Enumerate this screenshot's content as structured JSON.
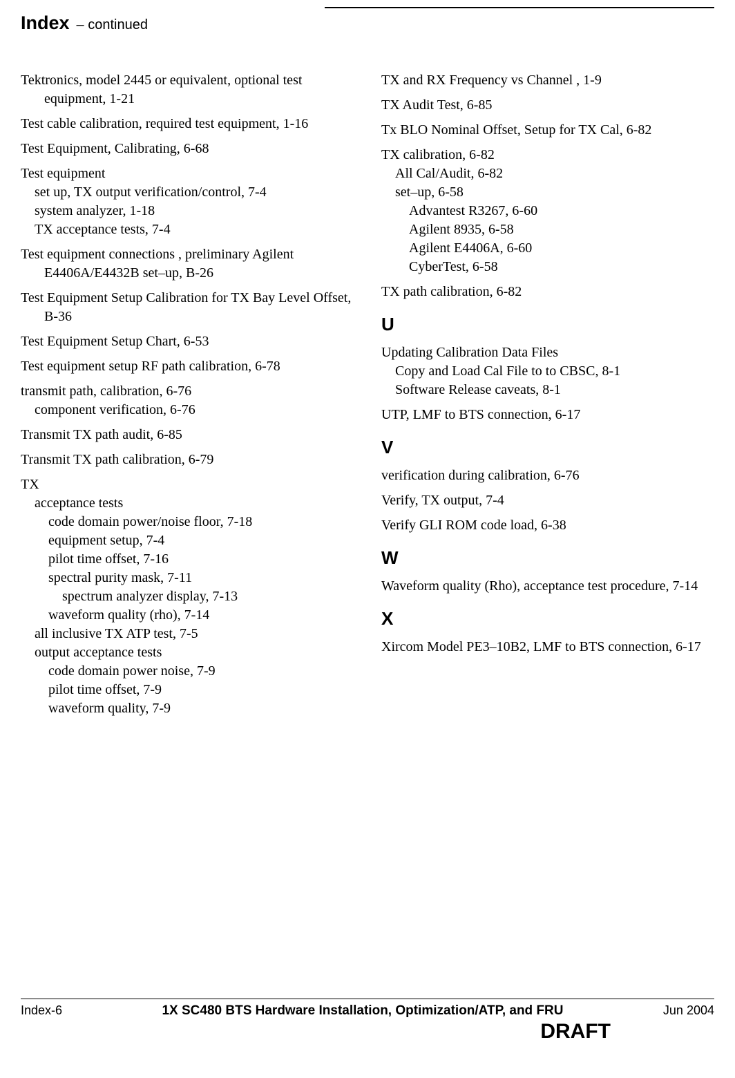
{
  "header": {
    "title": "Index",
    "subtitle": "– continued"
  },
  "left": {
    "e1": "Tektronics, model 2445 or equivalent, optional test equipment, 1-21",
    "e2": "Test cable calibration, required test equipment, 1-16",
    "e3": "Test Equipment, Calibrating, 6-68",
    "e4": "Test equipment",
    "e4a": "set up, TX output verification/control, 7-4",
    "e4b": "system analyzer, 1-18",
    "e4c": "TX acceptance tests, 7-4",
    "e5": "Test equipment connections , preliminary Agilent E4406A/E4432B set–up, B-26",
    "e6": "Test Equipment Setup Calibration for TX Bay Level Offset, B-36",
    "e7": "Test Equipment Setup Chart, 6-53",
    "e8": "Test equipment setup RF path  calibration, 6-78",
    "e9": "transmit path, calibration, 6-76",
    "e9a": "component verification, 6-76",
    "e10": "Transmit TX path audit, 6-85",
    "e11": "Transmit TX path calibration, 6-79",
    "e12": "TX",
    "e12a": "acceptance tests",
    "e12a1": "code domain power/noise floor, 7-18",
    "e12a2": "equipment setup, 7-4",
    "e12a3": "pilot time offset, 7-16",
    "e12a4": "spectral purity mask, 7-11",
    "e12a4a": "spectrum analyzer display, 7-13",
    "e12a5": "waveform quality (rho), 7-14",
    "e12b": "all inclusive TX ATP test, 7-5",
    "e12c": "output acceptance tests",
    "e12c1": "code domain power noise, 7-9",
    "e12c2": "pilot time offset, 7-9",
    "e12c3": "waveform quality, 7-9"
  },
  "right": {
    "r1": "TX and RX Frequency vs Channel , 1-9",
    "r2": "TX Audit Test, 6-85",
    "r3": "Tx BLO Nominal Offset, Setup for TX Cal, 6-82",
    "r4": "TX calibration, 6-82",
    "r4a": "All Cal/Audit, 6-82",
    "r4b": "set–up, 6-58",
    "r4b1": "Advantest R3267, 6-60",
    "r4b2": "Agilent 8935, 6-58",
    "r4b3": "Agilent E4406A, 6-60",
    "r4b4": "CyberTest, 6-58",
    "r5": "TX path calibration, 6-82",
    "u_header": "U",
    "u1": "Updating Calibration Data Files",
    "u1a": "Copy and Load Cal File to to CBSC, 8-1",
    "u1b": "Software Release caveats, 8-1",
    "u2": "UTP, LMF to BTS connection, 6-17",
    "v_header": "V",
    "v1": "verification during calibration, 6-76",
    "v2": "Verify, TX output, 7-4",
    "v3": "Verify GLI ROM code load, 6-38",
    "w_header": "W",
    "w1": "Waveform quality (Rho), acceptance test procedure, 7-14",
    "x_header": "X",
    "x1": "Xircom Model PE3–10B2, LMF to BTS connection, 6-17"
  },
  "footer": {
    "page": "Index-6",
    "title": "1X SC480 BTS Hardware Installation, Optimization/ATP, and FRU",
    "date": "Jun 2004",
    "draft": "DRAFT"
  }
}
